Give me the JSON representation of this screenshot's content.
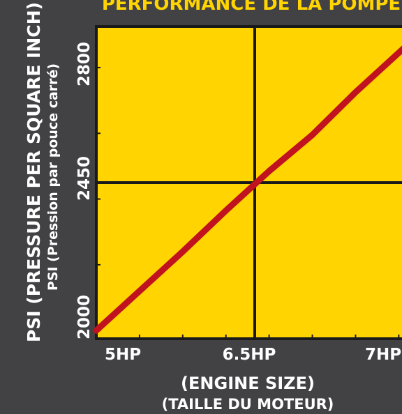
{
  "chart_data": {
    "type": "line",
    "title": "PERFORMANCE DE LA POMPE",
    "ylabel": "PSI (PRESSURE PER SQUARE INCH)",
    "ylabel_sub": "PSI (Pression par pouce carré)",
    "xlabel": "(ENGINE SIZE)",
    "xlabel_sub": "(TAILLE DU MOTEUR)",
    "x_ticks": [
      {
        "value": 5,
        "label": "5HP"
      },
      {
        "value": 6.5,
        "label": "6.5HP"
      },
      {
        "value": 7,
        "label": "7HP"
      }
    ],
    "y_ticks": [
      {
        "value": 2000,
        "label": "2000"
      },
      {
        "value": 2450,
        "label": "2450"
      },
      {
        "value": 2800,
        "label": "2800"
      }
    ],
    "xlim": [
      4.9,
      7.1
    ],
    "ylim": [
      1975,
      2925
    ],
    "series": [
      {
        "x": [
          4.9,
          5.2,
          5.5,
          5.8,
          6.1,
          6.4,
          6.7,
          7.0,
          7.1
        ],
        "y": [
          2000,
          2120,
          2240,
          2365,
          2485,
          2595,
          2725,
          2845,
          2885
        ]
      }
    ],
    "colors": {
      "background": "#424244",
      "plot_bg": "#FFD400",
      "line": "#C1121F",
      "grid": "#1a1a1a",
      "text": "#ffffff",
      "title": "#FFD400"
    }
  }
}
